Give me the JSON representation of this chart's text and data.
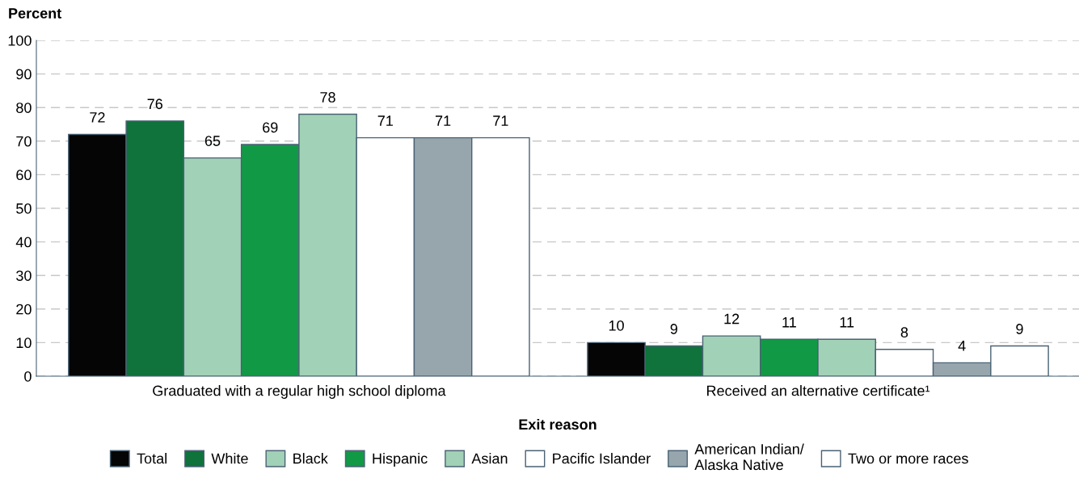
{
  "chart_data": {
    "type": "bar",
    "ylabel": "Percent",
    "xlabel": "Exit reason",
    "categories": [
      "Graduated with a regular high school diploma",
      "Received an alternative certificate¹"
    ],
    "series": [
      {
        "name": "Total",
        "color": "#050505",
        "values": [
          72,
          10
        ]
      },
      {
        "name": "White",
        "color": "#0f733b",
        "values": [
          76,
          9
        ]
      },
      {
        "name": "Black",
        "color": "#a1d1b6",
        "values": [
          65,
          12
        ]
      },
      {
        "name": "Hispanic",
        "color": "#129945",
        "values": [
          69,
          11
        ]
      },
      {
        "name": "Asian",
        "color": "#a1d1b6",
        "values": [
          78,
          11
        ]
      },
      {
        "name": "Pacific Islander",
        "color": "#ffffff",
        "values": [
          71,
          8
        ]
      },
      {
        "name": "American Indian/\nAlaska Native",
        "color": "#97a6ad",
        "values": [
          71,
          4
        ]
      },
      {
        "name": "Two or more races",
        "color": "#ffffff",
        "values": [
          71,
          9
        ]
      }
    ],
    "ylim": [
      0,
      100
    ],
    "yticks": [
      0,
      10,
      20,
      30,
      40,
      50,
      60,
      70,
      80,
      90,
      100
    ],
    "grid": "y",
    "legend": "bottom",
    "data_labels": true
  }
}
